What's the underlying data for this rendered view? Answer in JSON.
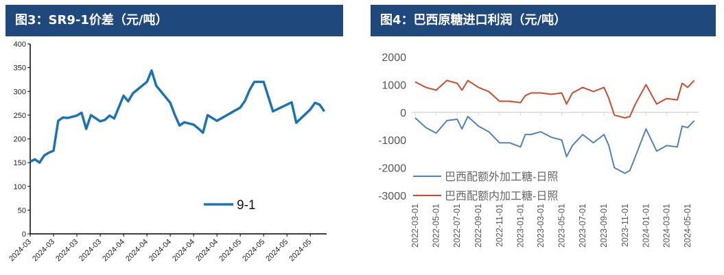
{
  "chart_data": [
    {
      "type": "line",
      "title": "图3：SR9-1价差（元/吨）",
      "ylim": [
        0,
        400
      ],
      "yticks": [
        0,
        50,
        100,
        150,
        200,
        250,
        300,
        350,
        400
      ],
      "xtick_labels": [
        "2024-03",
        "2024-03",
        "2024-03",
        "2024-03",
        "2024-04",
        "2024-04",
        "2024-04",
        "2024-04",
        "2024-04",
        "2024-05",
        "2024-05",
        "2024-05",
        "2024-05"
      ],
      "xtick_every_days": 5,
      "legend_position": "bottom-right",
      "color": "#1a73b8",
      "series": [
        {
          "name": "9-1",
          "points": [
            [
              0,
              152
            ],
            [
              1,
              157
            ],
            [
              2,
              150
            ],
            [
              3,
              165
            ],
            [
              4,
              171
            ],
            [
              5,
              175
            ],
            [
              6,
              238
            ],
            [
              7,
              245
            ],
            [
              8,
              244
            ],
            [
              10,
              249
            ],
            [
              11,
              255
            ],
            [
              12,
              221
            ],
            [
              13,
              250
            ],
            [
              15,
              237
            ],
            [
              16,
              240
            ],
            [
              17,
              249
            ],
            [
              18,
              243
            ],
            [
              20,
              291
            ],
            [
              21,
              279
            ],
            [
              22,
              296
            ],
            [
              25,
              320
            ],
            [
              26,
              344
            ],
            [
              27,
              312
            ],
            [
              30,
              276
            ],
            [
              31,
              250
            ],
            [
              32,
              228
            ],
            [
              33,
              235
            ],
            [
              35,
              230
            ],
            [
              36,
              222
            ],
            [
              37,
              213
            ],
            [
              38,
              250
            ],
            [
              40,
              238
            ],
            [
              45,
              266
            ],
            [
              46,
              280
            ],
            [
              47,
              303
            ],
            [
              48,
              320
            ],
            [
              50,
              320
            ],
            [
              52,
              258
            ],
            [
              56,
              277
            ],
            [
              57,
              234
            ],
            [
              60,
              262
            ],
            [
              61,
              276
            ],
            [
              62,
              272
            ],
            [
              63,
              258
            ]
          ]
        }
      ]
    },
    {
      "type": "line",
      "title": "图4：巴西原糖进口利润（元/吨）",
      "ylim": [
        -3000,
        2000
      ],
      "yticks": [
        -3000,
        -2000,
        -1000,
        0,
        1000,
        2000
      ],
      "xtick_labels": [
        "2022-03-01",
        "2022-05-01",
        "2022-07-01",
        "2022-09-01",
        "2022-11-01",
        "2023-01-01",
        "2023-03-01",
        "2023-05-01",
        "2023-07-01",
        "2023-09-01",
        "2023-11-01",
        "2024-01-01",
        "2024-03-01",
        "2024-05-01"
      ],
      "legend_position": "bottom-left",
      "dates": [
        "2022-03-01",
        "2022-04-01",
        "2022-05-01",
        "2022-06-01",
        "2022-07-01",
        "2022-07-15",
        "2022-08-01",
        "2022-09-01",
        "2022-10-01",
        "2022-11-01",
        "2022-12-01",
        "2023-01-01",
        "2023-01-15",
        "2023-02-01",
        "2023-03-01",
        "2023-04-01",
        "2023-05-01",
        "2023-05-15",
        "2023-06-01",
        "2023-07-01",
        "2023-08-01",
        "2023-09-01",
        "2023-09-15",
        "2023-10-01",
        "2023-11-01",
        "2023-11-15",
        "2023-12-01",
        "2024-01-01",
        "2024-02-01",
        "2024-03-01",
        "2024-04-01",
        "2024-04-15",
        "2024-05-01",
        "2024-05-20"
      ],
      "series": [
        {
          "name": "巴西配额外加工糖-日照",
          "color": "#4f81bd",
          "values": [
            -200,
            -550,
            -750,
            -300,
            -250,
            -600,
            -150,
            -500,
            -700,
            -1100,
            -1100,
            -1250,
            -800,
            -800,
            -700,
            -900,
            -1000,
            -1600,
            -1200,
            -800,
            -1100,
            -800,
            -1200,
            -2000,
            -2200,
            -2100,
            -1600,
            -600,
            -1400,
            -1200,
            -1250,
            -500,
            -550,
            -300
          ]
        },
        {
          "name": "巴西配额内加工糖-日照",
          "color": "#d04a2a",
          "values": [
            1100,
            900,
            800,
            1150,
            1050,
            800,
            1150,
            900,
            750,
            400,
            400,
            350,
            600,
            700,
            700,
            650,
            700,
            300,
            700,
            900,
            750,
            900,
            500,
            -100,
            -200,
            -150,
            300,
            1000,
            300,
            500,
            450,
            1050,
            900,
            1150
          ]
        }
      ]
    }
  ]
}
